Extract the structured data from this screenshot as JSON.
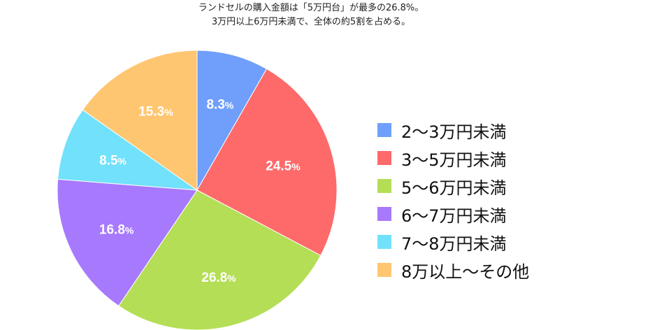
{
  "chart_data": {
    "type": "pie",
    "title": "ランドセルの購入金額は「5万円台」が最多の26.8%。",
    "subtitle": "3万円以上6万円未満で、全体の約5割を占める。",
    "slices": [
      {
        "label": "2〜3万円未満",
        "value": 8.3,
        "display_num": "8.3",
        "color": "#6f9ffb"
      },
      {
        "label": "3〜5万円未満",
        "value": 24.5,
        "display_num": "24.5",
        "color": "#fe6a6a"
      },
      {
        "label": "5〜6万円未満",
        "value": 26.8,
        "display_num": "26.8",
        "color": "#b4de56"
      },
      {
        "label": "6〜7万円未満",
        "value": 16.8,
        "display_num": "16.8",
        "color": "#a779fd"
      },
      {
        "label": "7〜8万円未満",
        "value": 8.5,
        "display_num": "8.5",
        "color": "#72e1fb"
      },
      {
        "label": "8万以上〜その他",
        "value": 15.3,
        "display_num": "15.3",
        "color": "#ffc671"
      }
    ],
    "unit": "%",
    "legend_placement": "right",
    "start_angle": "top",
    "direction": "clockwise"
  }
}
